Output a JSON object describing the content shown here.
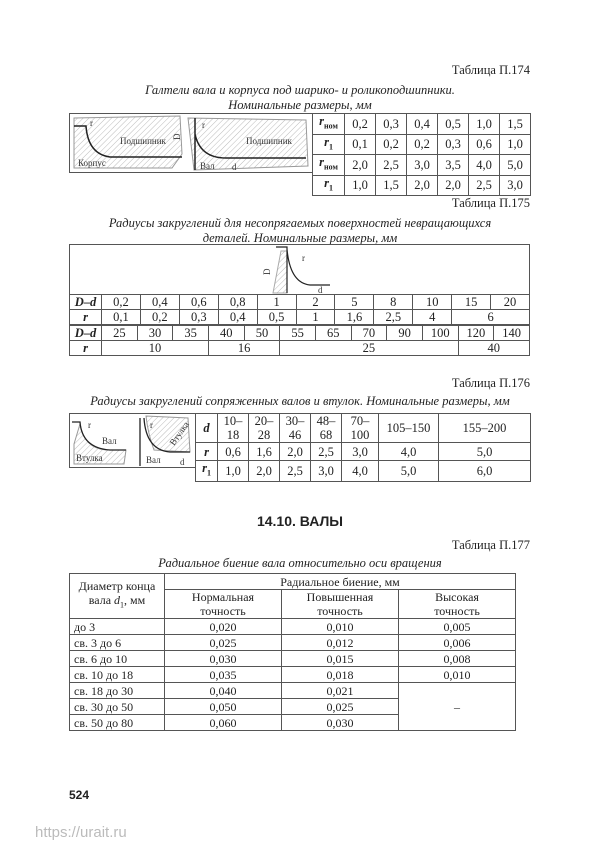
{
  "t174": {
    "number": "Таблица П.174",
    "caption1": "Галтели вала и корпуса под шарико- и роликоподшипники.",
    "caption2": "Номинальные размеры, мм",
    "fig": {
      "r_nom": "r",
      "nom": "ном",
      "r1": "r",
      "one": "1",
      "bearing": "Подшипник",
      "housing": "Корпус",
      "shaft": "Вал",
      "D": "D",
      "d": "d"
    },
    "rows": [
      {
        "label": "r",
        "sub": "ном",
        "values": [
          "0,2",
          "0,3",
          "0,4",
          "0,5",
          "1,0",
          "1,5"
        ]
      },
      {
        "label": "r",
        "sub": "1",
        "values": [
          "0,1",
          "0,2",
          "0,2",
          "0,3",
          "0,6",
          "1,0"
        ]
      },
      {
        "label": "r",
        "sub": "ном",
        "values": [
          "2,0",
          "2,5",
          "3,0",
          "3,5",
          "4,0",
          "5,0"
        ]
      },
      {
        "label": "r",
        "sub": "1",
        "values": [
          "1,0",
          "1,5",
          "2,0",
          "2,0",
          "2,5",
          "3,0"
        ]
      }
    ]
  },
  "t175": {
    "number": "Таблица П.175",
    "caption1": "Радиусы закруглений для несопрягаемых поверхностей невращающихся",
    "caption2": "деталей. Номинальные размеры, мм",
    "fig": {
      "D": "D",
      "d": "d",
      "r": "r"
    },
    "row1": {
      "label": "D–d",
      "values": [
        "0,2",
        "0,4",
        "0,6",
        "0,8",
        "1",
        "2",
        "5",
        "8",
        "10",
        "15",
        "20"
      ]
    },
    "row2": {
      "label": "r",
      "values": [
        "0,1",
        "0,2",
        "0,3",
        "0,4",
        "0,5",
        "1",
        "1,6",
        "2,5",
        "4",
        "6"
      ]
    },
    "row3": {
      "label": "D–d",
      "values": [
        "25",
        "30",
        "35",
        "40",
        "50",
        "55",
        "65",
        "70",
        "90",
        "100",
        "120",
        "140"
      ]
    },
    "row4": {
      "label": "r",
      "values": [
        "10",
        "16",
        "25",
        "40"
      ]
    }
  },
  "t176": {
    "number": "Таблица П.176",
    "caption": "Радиусы закруглений сопряженных валов и втулок. Номинальные размеры, мм",
    "fig": {
      "r": "r",
      "r1": "r1",
      "shaft": "Вал",
      "bushing": "Втулка",
      "d": "d"
    },
    "rows": [
      {
        "label": "d",
        "sub": "",
        "values": [
          "10–18",
          "20–28",
          "30–46",
          "48–68",
          "70–100",
          "105–150",
          "155–200"
        ]
      },
      {
        "label": "r",
        "sub": "",
        "values": [
          "0,6",
          "1,6",
          "2,0",
          "2,5",
          "3,0",
          "4,0",
          "5,0"
        ]
      },
      {
        "label": "r",
        "sub": "1",
        "values": [
          "1,0",
          "2,0",
          "2,5",
          "3,0",
          "4,0",
          "5,0",
          "6,0"
        ]
      }
    ]
  },
  "section_title": "14.10. ВАЛЫ",
  "t177": {
    "number": "Таблица П.177",
    "caption": "Радиальное биение вала относительно оси вращения",
    "h_diam1": "Диаметр конца",
    "h_diam2": "вала ",
    "h_d": "d",
    "h_sub": "1",
    "h_unit": ", мм",
    "h_runout": "Радиальное биение, мм",
    "cols": [
      [
        "Нормальная",
        "точность"
      ],
      [
        "Повышенная",
        "точность"
      ],
      [
        "Высокая",
        "точность"
      ]
    ],
    "rows": [
      [
        "до 3",
        "0,020",
        "0,010",
        "0,005"
      ],
      [
        "св. 3 до 6",
        "0,025",
        "0,012",
        "0,006"
      ],
      [
        "св. 6 до 10",
        "0,030",
        "0,015",
        "0,008"
      ],
      [
        "св. 10 до 18",
        "0,035",
        "0,018",
        "0,010"
      ],
      [
        "св. 18 до 30",
        "0,040",
        "0,021"
      ],
      [
        "св. 30 до 50",
        "0,050",
        "0,025"
      ],
      [
        "св. 50 до 80",
        "0,060",
        "0,030"
      ]
    ],
    "dash": "–"
  },
  "page_number": "524",
  "watermark": "https://urait.ru"
}
